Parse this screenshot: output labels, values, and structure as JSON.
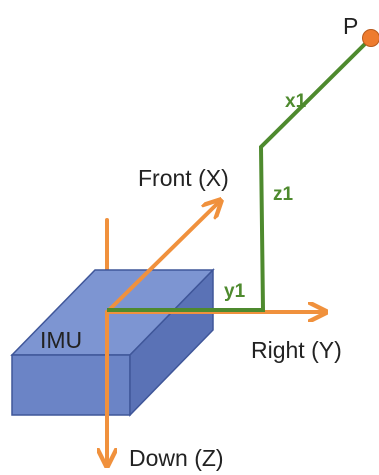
{
  "labels": {
    "point": "P",
    "imu": "IMU",
    "front": "Front (X)",
    "right": "Right (Y)",
    "down": "Down (Z)"
  },
  "segments": {
    "x1": "x1",
    "y1": "y1",
    "z1": "z1"
  },
  "colors": {
    "axis": "#f0913d",
    "path": "#4e8a2e",
    "box_top": "#7d95d2",
    "box_front": "#6b84c6",
    "box_side": "#5a72b6",
    "box_stroke": "#3f5699",
    "point": "#ee7b2e"
  }
}
